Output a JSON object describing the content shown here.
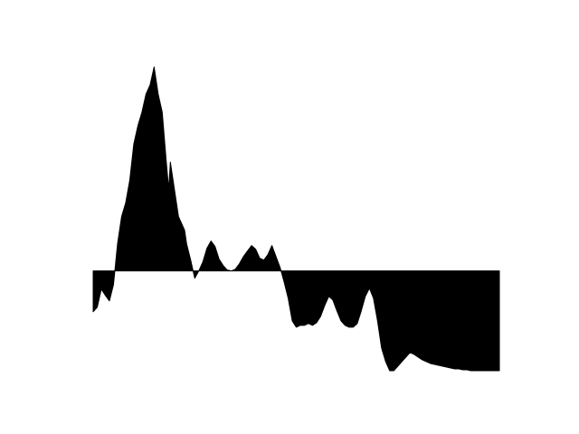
{
  "chart_data": {
    "type": "area",
    "title": "",
    "xlabel": "",
    "ylabel": "",
    "baseline": 0,
    "xlim": [
      0,
      100
    ],
    "ylim": [
      -1.1,
      2.25
    ],
    "grid": false,
    "axes_visible": false,
    "fill_color": "#000000",
    "background_color": "#ffffff",
    "series": [
      {
        "x": [
          0,
          1,
          2,
          3,
          4,
          5,
          6,
          7,
          8,
          9,
          10,
          11,
          12,
          13,
          14,
          15,
          16,
          17,
          18,
          18.6,
          19,
          20,
          21,
          22,
          22.5,
          23,
          24,
          25,
          26,
          27,
          28,
          29,
          30,
          31,
          32,
          33,
          34,
          35,
          36,
          37,
          38,
          39,
          40,
          41,
          42,
          43,
          44,
          45,
          46,
          47,
          48,
          49,
          50,
          51,
          52,
          53,
          54,
          55,
          56,
          57,
          58,
          59,
          60,
          61,
          62,
          63,
          64,
          65,
          66,
          67,
          68,
          69,
          70,
          71,
          72,
          73,
          74,
          75,
          76,
          77,
          78,
          79,
          80,
          81,
          82,
          83,
          84,
          85,
          86,
          87,
          88,
          89,
          90,
          91,
          92,
          93,
          94,
          95,
          96,
          97,
          98,
          99,
          100
        ],
        "y": [
          -0.45,
          -0.4,
          -0.2,
          -0.27,
          -0.33,
          -0.15,
          0.3,
          0.6,
          0.75,
          1.0,
          1.4,
          1.6,
          1.75,
          1.95,
          2.05,
          2.25,
          1.95,
          1.75,
          1.2,
          0.9,
          1.2,
          0.9,
          0.6,
          0.5,
          0.45,
          0.3,
          0.12,
          -0.08,
          0.0,
          0.1,
          0.25,
          0.33,
          0.27,
          0.13,
          0.06,
          0.01,
          0.0,
          0.02,
          0.08,
          0.16,
          0.22,
          0.28,
          0.24,
          0.14,
          0.12,
          0.18,
          0.28,
          0.16,
          0.04,
          -0.12,
          -0.3,
          -0.55,
          -0.62,
          -0.6,
          -0.6,
          -0.58,
          -0.6,
          -0.57,
          -0.5,
          -0.38,
          -0.28,
          -0.32,
          -0.44,
          -0.55,
          -0.6,
          -0.62,
          -0.62,
          -0.58,
          -0.44,
          -0.28,
          -0.19,
          -0.3,
          -0.55,
          -0.85,
          -1.0,
          -1.1,
          -1.1,
          -1.05,
          -1.0,
          -0.95,
          -0.9,
          -0.92,
          -0.95,
          -0.98,
          -1.0,
          -1.02,
          -1.03,
          -1.04,
          -1.05,
          -1.06,
          -1.07,
          -1.08,
          -1.08,
          -1.09,
          -1.09,
          -1.1,
          -1.1,
          -1.1,
          -1.1,
          -1.1,
          -1.1,
          -1.1,
          -1.1
        ]
      }
    ]
  }
}
